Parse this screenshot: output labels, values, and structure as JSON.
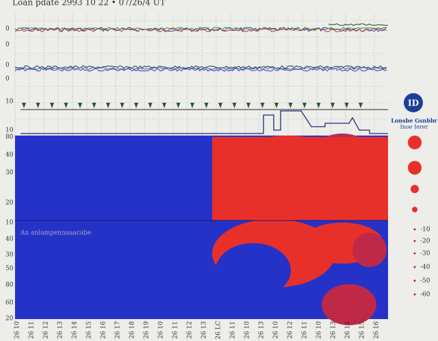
{
  "header": {
    "title": "Loan pdate 2993 10 22 • 07/26/4 UT"
  },
  "left_labels": [
    "0",
    "0",
    "0",
    "0",
    "10",
    "10",
    "80",
    "40",
    "30",
    "20",
    "10",
    "40",
    "30",
    "50",
    "80",
    "60",
    "20"
  ],
  "annotation": "An anlampennaaacabe",
  "logo": {
    "mark": "ID",
    "line1": "Lonsbe Gsnbbr",
    "line2": "Inoe Ierer"
  },
  "legend_labels": [
    "-10",
    "-20",
    "-30",
    "-40",
    "-50",
    "-60"
  ],
  "bottom_labels": [
    "26 10",
    "26 11",
    "26 12",
    "26 13",
    "26 14",
    "26 15",
    "26 16",
    "26 17",
    "26 18",
    "26 19",
    "26 10",
    "26 11",
    "26 12",
    "26 13",
    "26 LC",
    "26 11",
    "26 10",
    "26 13",
    "26 10",
    "26 12",
    "26 11",
    "26 10",
    "26 13",
    "26 14",
    "26 15",
    "26 16"
  ]
}
